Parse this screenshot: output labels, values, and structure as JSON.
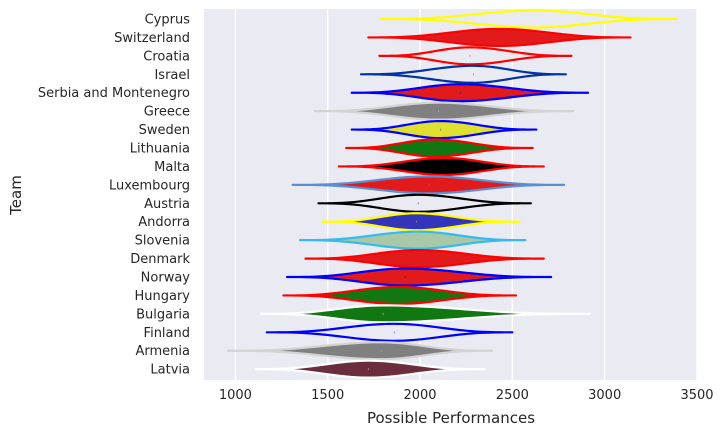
{
  "chart_data": {
    "type": "violin",
    "orientation": "horizontal",
    "title": "",
    "xlabel": "Possible Performances",
    "ylabel": "Team",
    "xlim": [
      830,
      3500
    ],
    "xticks": [
      1000,
      1500,
      2000,
      2500,
      3000,
      3500
    ],
    "grid": true,
    "background": "#EAEAF2",
    "teams": [
      {
        "name": "Cyprus",
        "min": 1790,
        "max": 3390,
        "median": 2720,
        "fill": "#EAEAF2",
        "edge": "#FFFF00",
        "peak": 2620
      },
      {
        "name": "Switzerland",
        "min": 1720,
        "max": 3140,
        "median": 2430,
        "fill": "#E31A1C",
        "edge": "#FF0000",
        "peak": 2430
      },
      {
        "name": "Croatia",
        "min": 1780,
        "max": 2820,
        "median": 2270,
        "fill": "#EAEAF2",
        "edge": "#FF0000",
        "peak": 2270
      },
      {
        "name": "Israel",
        "min": 1680,
        "max": 2790,
        "median": 2290,
        "fill": "#EAEAF2",
        "edge": "#0033A0",
        "peak": 2290
      },
      {
        "name": "Serbia and Montenegro",
        "min": 1630,
        "max": 2910,
        "median": 2220,
        "fill": "#E31A1C",
        "edge": "#0000FF",
        "peak": 2220
      },
      {
        "name": "Greece",
        "min": 1430,
        "max": 2830,
        "median": 2100,
        "fill": "#808080",
        "edge": "#D3D3D3",
        "peak": 2100
      },
      {
        "name": "Sweden",
        "min": 1630,
        "max": 2630,
        "median": 2110,
        "fill": "#E0E030",
        "edge": "#0000FF",
        "peak": 2110
      },
      {
        "name": "Lithuania",
        "min": 1600,
        "max": 2610,
        "median": 2080,
        "fill": "#117711",
        "edge": "#FF0000",
        "peak": 2080
      },
      {
        "name": "Malta",
        "min": 1560,
        "max": 2670,
        "median": 2130,
        "fill": "#000000",
        "edge": "#FF0000",
        "peak": 2130
      },
      {
        "name": "Luxembourg",
        "min": 1310,
        "max": 2780,
        "median": 2050,
        "fill": "#E31A1C",
        "edge": "#5B8FD4",
        "peak": 2050
      },
      {
        "name": "Austria",
        "min": 1450,
        "max": 2600,
        "median": 1990,
        "fill": "#EAEAF2",
        "edge": "#000000",
        "peak": 1990
      },
      {
        "name": "Andorra",
        "min": 1470,
        "max": 2540,
        "median": 1980,
        "fill": "#3333BB",
        "edge": "#FFFF00",
        "peak": 1980
      },
      {
        "name": "Slovenia",
        "min": 1350,
        "max": 2570,
        "median": 1990,
        "fill": "#A9C8A8",
        "edge": "#33BBEE",
        "peak": 1990
      },
      {
        "name": "Denmark",
        "min": 1380,
        "max": 2670,
        "median": 1990,
        "fill": "#E31A1C",
        "edge": "#FF0000",
        "peak": 1990
      },
      {
        "name": "Norway",
        "min": 1280,
        "max": 2710,
        "median": 1920,
        "fill": "#E31A1C",
        "edge": "#0000FF",
        "peak": 1920
      },
      {
        "name": "Hungary",
        "min": 1260,
        "max": 2520,
        "median": 1880,
        "fill": "#117711",
        "edge": "#FF0000",
        "peak": 1880
      },
      {
        "name": "Bulgaria",
        "min": 1140,
        "max": 2920,
        "median": 1800,
        "fill": "#117711",
        "edge": "#FFFFFF",
        "peak": 1800
      },
      {
        "name": "Finland",
        "min": 1170,
        "max": 2500,
        "median": 1860,
        "fill": "#EAEAF2",
        "edge": "#0000FF",
        "peak": 1860
      },
      {
        "name": "Armenia",
        "min": 960,
        "max": 2390,
        "median": 1790,
        "fill": "#808080",
        "edge": "#D3D3D3",
        "peak": 1790
      },
      {
        "name": "Latvia",
        "min": 1110,
        "max": 2350,
        "median": 1720,
        "fill": "#6B2D3C",
        "edge": "#FFFFFF",
        "peak": 1720
      }
    ]
  }
}
